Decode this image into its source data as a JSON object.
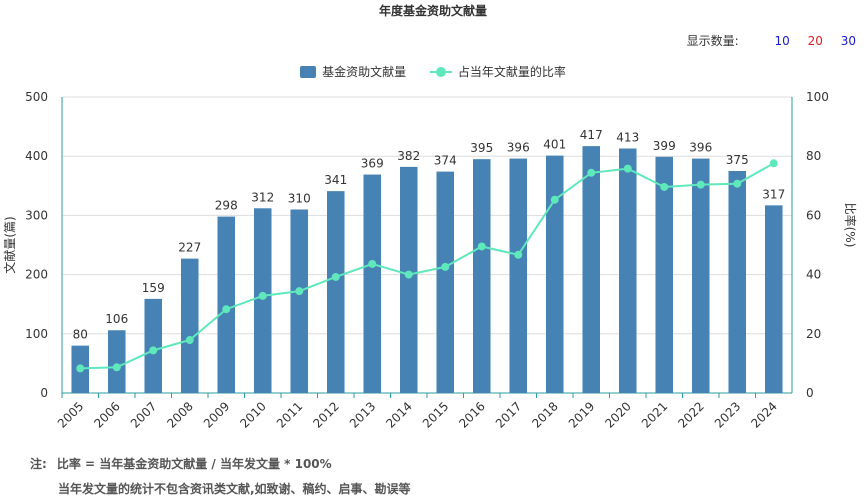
{
  "title": "年度基金资助文献量",
  "display_count": {
    "label": "显示数量:",
    "options": [
      {
        "label": "10",
        "color": "#1a1acc"
      },
      {
        "label": "20",
        "color": "#e02020"
      },
      {
        "label": "30",
        "color": "#1a1acc"
      }
    ]
  },
  "notes": {
    "prefix": "注:",
    "line1": "比率 = 当年基金资助文献量 / 当年发文量 * 100%",
    "line2": "当年发文量的统计不包含资讯类文献,如致谢、稿约、启事、勘误等"
  },
  "colors": {
    "bar": "#4682b4",
    "line": "#5ee8bb",
    "axis": "#2a9d9d"
  },
  "chart_data": {
    "type": "bar",
    "title": "年度基金资助文献量",
    "categories": [
      "2005",
      "2006",
      "2007",
      "2008",
      "2009",
      "2010",
      "2011",
      "2012",
      "2013",
      "2014",
      "2015",
      "2016",
      "2017",
      "2018",
      "2019",
      "2020",
      "2021",
      "2022",
      "2023",
      "2024"
    ],
    "ylabel": "文献量(篇)",
    "y2label": "比率(%)",
    "ylim": [
      0,
      500
    ],
    "y2lim": [
      0,
      100
    ],
    "yticks": [
      "0",
      "100",
      "200",
      "300",
      "400",
      "500"
    ],
    "y2ticks": [
      "0",
      "20",
      "40",
      "60",
      "80",
      "100"
    ],
    "grid": true,
    "legend_position": "top-center",
    "series": [
      {
        "name": "基金资助文献量",
        "type": "bar",
        "values": [
          80,
          106,
          159,
          227,
          298,
          312,
          310,
          341,
          369,
          382,
          374,
          395,
          396,
          401,
          417,
          413,
          399,
          396,
          375,
          317
        ]
      },
      {
        "name": "占当年文献量的比率",
        "type": "line",
        "axis": "right",
        "values": [
          8.3,
          8.7,
          14.4,
          17.9,
          28.3,
          32.8,
          34.4,
          39.2,
          43.6,
          40.0,
          42.6,
          49.5,
          46.7,
          65.3,
          74.4,
          75.8,
          69.6,
          70.4,
          70.7,
          77.6
        ]
      }
    ]
  }
}
